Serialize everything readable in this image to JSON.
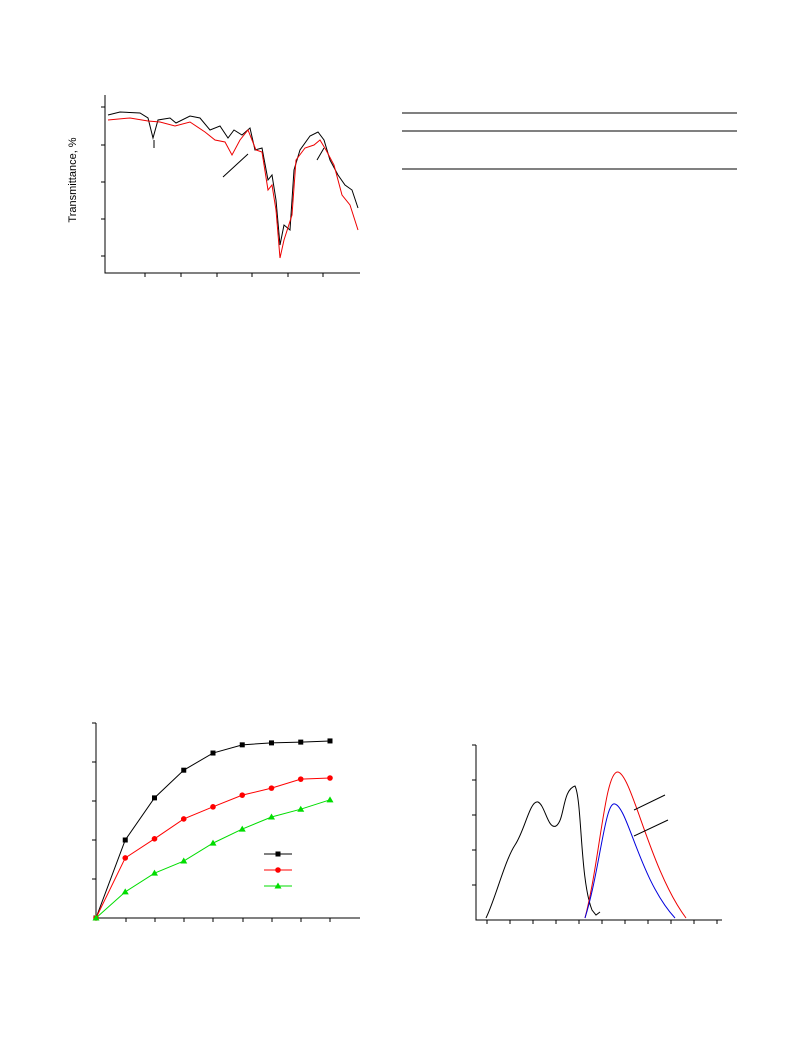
{
  "figure_ir": {
    "ylabel": "Transmittance, %"
  },
  "chart_data": {
    "type": "line",
    "x": [
      0,
      1,
      2,
      3,
      4,
      5,
      6,
      7,
      8
    ],
    "xlim": [
      0,
      8
    ],
    "ylim": [
      0,
      5
    ],
    "series": [
      {
        "color": "#000000",
        "marker": "square",
        "values": [
          0,
          2,
          3.08,
          3.79,
          4.23,
          4.44,
          4.49,
          4.51,
          4.54
        ]
      },
      {
        "color": "#ff0000",
        "marker": "circle",
        "values": [
          0,
          1.54,
          2.03,
          2.54,
          2.85,
          3.15,
          3.33,
          3.56,
          3.59
        ]
      },
      {
        "color": "#00dd00",
        "marker": "triangle",
        "values": [
          0,
          0.67,
          1.15,
          1.46,
          1.92,
          2.28,
          2.59,
          2.79,
          3.03
        ]
      }
    ]
  }
}
